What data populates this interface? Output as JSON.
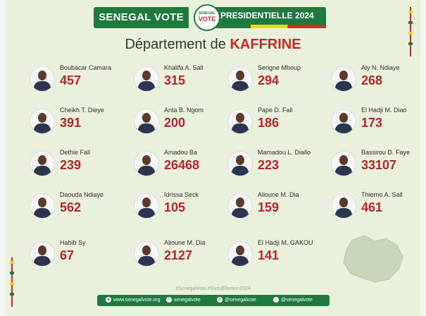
{
  "header": {
    "brand": "SENEGAL VOTE",
    "logo_top": "SENEGAL",
    "logo_bottom": "VOTE",
    "election": "PRESIDENTIELLE 2024"
  },
  "title": {
    "prefix": "Département de",
    "region": "KAFFRINE"
  },
  "candidates": [
    {
      "name": "Boubacar Camara",
      "votes": "457"
    },
    {
      "name": "Khalifa A. Sall",
      "votes": "315"
    },
    {
      "name": "Serigne Mboup",
      "votes": "294"
    },
    {
      "name": "Aly N. Ndiaye",
      "votes": "268"
    },
    {
      "name": "Cheikh T. Dieye",
      "votes": "391"
    },
    {
      "name": "Anta B. Ngom",
      "votes": "200"
    },
    {
      "name": "Pape D. Fall",
      "votes": "186"
    },
    {
      "name": "El Hadji M. Diao",
      "votes": "173"
    },
    {
      "name": "Dethie Fall",
      "votes": "239"
    },
    {
      "name": "Amadou Ba",
      "votes": "26468"
    },
    {
      "name": "Mamadou L. Diallo",
      "votes": "223"
    },
    {
      "name": "Bassirou D. Faye",
      "votes": "33107"
    },
    {
      "name": "Daouda Ndiaye",
      "votes": "562"
    },
    {
      "name": "Idrissa Seck",
      "votes": "105"
    },
    {
      "name": "Alioune M. Dia",
      "votes": "159"
    },
    {
      "name": "Thierno A. Sall",
      "votes": "461"
    },
    {
      "name": "Habib Sy",
      "votes": "67"
    },
    {
      "name": "Alioune M. Dia",
      "votes": "2127"
    },
    {
      "name": "El Hadji M. GAKOU",
      "votes": "141"
    }
  ],
  "hashtags": "#SenegalVote  #SunuElection2024",
  "footer": {
    "website": "www.senegalvote.org",
    "facebook": "senegalvote",
    "instagram": "@senegalvote",
    "twitter": "@senegalvote"
  },
  "colors": {
    "green": "#1f7a3d",
    "red": "#b3262b",
    "background": "#e9f0dc"
  }
}
